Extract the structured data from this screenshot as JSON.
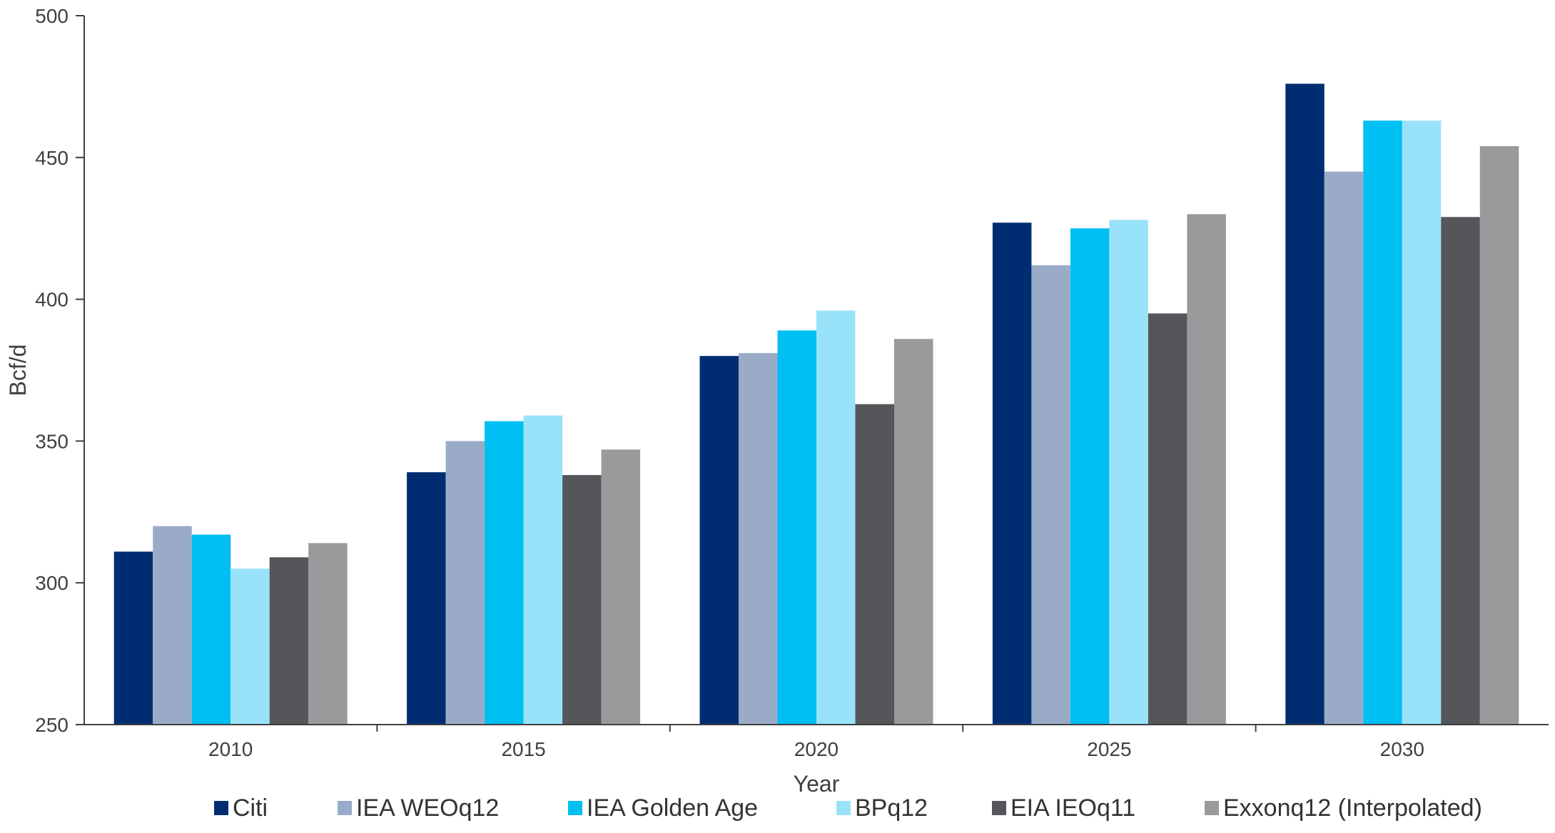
{
  "chart_data": {
    "type": "bar",
    "categories": [
      "2010",
      "2015",
      "2020",
      "2025",
      "2030"
    ],
    "series": [
      {
        "name": "Citi",
        "color": "#002d72",
        "values": [
          311,
          339,
          380,
          427,
          476
        ]
      },
      {
        "name": "IEA WEO​12",
        "color": "#9aabc8",
        "values": [
          320,
          350,
          381,
          412,
          445
        ]
      },
      {
        "name": "IEA Golden Age",
        "color": "#00bff3",
        "values": [
          317,
          357,
          389,
          425,
          463
        ]
      },
      {
        "name": "BP​12",
        "color": "#99e3fa",
        "values": [
          305,
          359,
          396,
          428,
          463
        ]
      },
      {
        "name": "EIA IEO​11",
        "color": "#54565a",
        "values": [
          309,
          338,
          363,
          395,
          429
        ]
      },
      {
        "name": "Exxon​12 (Interpolated)",
        "color": "#999a9c",
        "values": [
          314,
          347,
          386,
          430,
          454
        ]
      }
    ],
    "legend_labels": [
      "Citi",
      "IEA WEOq12",
      "IEA Golden Age",
      "BPq12",
      "EIA IEOq11",
      "Exxonq12 (Interpolated)"
    ],
    "xlabel": "Year",
    "ylabel": "Bcf/d",
    "ylim": [
      250,
      500
    ],
    "yticks": [
      "250",
      "300",
      "350",
      "400",
      "450",
      "500"
    ],
    "grid": false,
    "legend_position": "bottom"
  }
}
